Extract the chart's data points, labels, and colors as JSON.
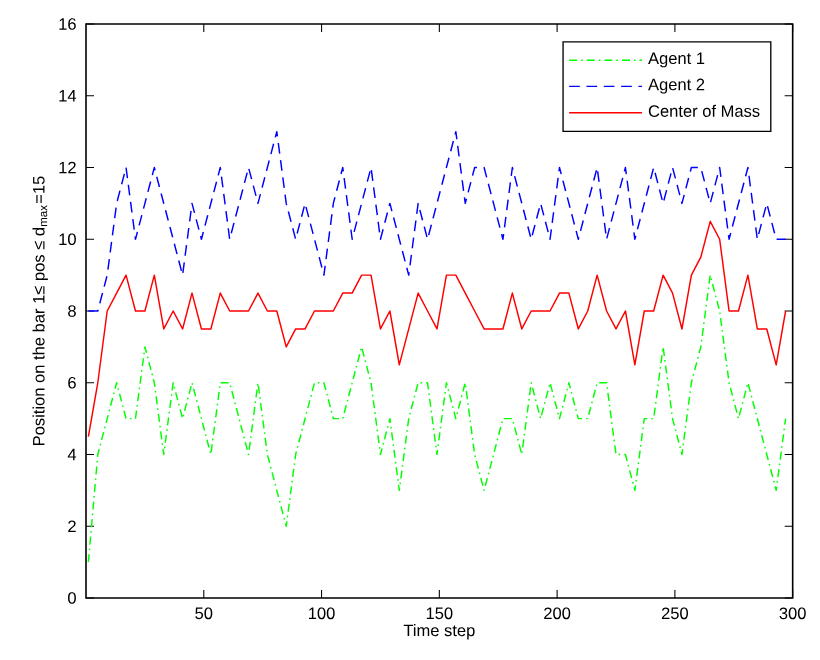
{
  "chart_data": {
    "type": "line",
    "xlabel": "Time step",
    "ylabel": "Position on the bar 1≤ pos ≤ d$_{max}$=15",
    "x": [
      1,
      5,
      9,
      13,
      17,
      21,
      25,
      29,
      33,
      37,
      41,
      45,
      49,
      53,
      57,
      61,
      65,
      69,
      73,
      77,
      81,
      85,
      89,
      93,
      97,
      101,
      105,
      109,
      113,
      117,
      121,
      125,
      129,
      133,
      137,
      141,
      145,
      149,
      153,
      157,
      161,
      165,
      169,
      173,
      177,
      181,
      185,
      189,
      193,
      197,
      201,
      205,
      209,
      213,
      217,
      221,
      225,
      229,
      233,
      237,
      241,
      245,
      249,
      253,
      257,
      261,
      265,
      269,
      273,
      277,
      281,
      285,
      289,
      293,
      297
    ],
    "series": [
      {
        "name": "Agent 1",
        "color": "#00ff00",
        "line_style": "dashdot",
        "values": [
          1,
          4,
          5,
          6,
          5,
          5,
          7,
          6,
          4,
          6,
          5,
          6,
          5,
          4,
          6,
          6,
          5,
          4,
          6,
          4,
          3,
          2,
          4,
          5,
          6,
          6,
          5,
          5,
          6,
          7,
          6,
          4,
          5,
          3,
          5,
          6,
          6,
          4,
          6,
          5,
          6,
          4,
          3,
          4,
          5,
          5,
          4,
          6,
          5,
          6,
          5,
          6,
          5,
          5,
          6,
          6,
          4,
          4,
          3,
          5,
          5,
          7,
          5,
          4,
          6,
          7,
          9,
          8,
          6,
          5,
          6,
          5,
          4,
          3,
          5
        ]
      },
      {
        "name": "Agent 2",
        "color": "#0000ff",
        "line_style": "dashed",
        "values": [
          8,
          8,
          9,
          11,
          12,
          10,
          11,
          12,
          11,
          10,
          9,
          11,
          10,
          11,
          12,
          10,
          11,
          12,
          11,
          12,
          13,
          11,
          10,
          11,
          10,
          9,
          11,
          12,
          10,
          11,
          12,
          10,
          11,
          10,
          9,
          11,
          10,
          11,
          12,
          13,
          11,
          12,
          12,
          11,
          10,
          12,
          11,
          10,
          11,
          10,
          12,
          11,
          10,
          11,
          12,
          10,
          11,
          12,
          10,
          11,
          12,
          11,
          12,
          11,
          12,
          12,
          11,
          12,
          10,
          11,
          12,
          10,
          11,
          10,
          10
        ]
      },
      {
        "name": "Center of Mass",
        "color": "#ff0000",
        "line_style": "solid",
        "values": [
          4.5,
          6,
          8,
          8.5,
          9,
          8,
          8,
          9,
          7.5,
          8,
          7.5,
          8.5,
          7.5,
          7.5,
          8.5,
          8,
          8,
          8,
          8.5,
          8,
          8,
          7,
          7.5,
          7.5,
          8,
          8,
          8,
          8.5,
          8.5,
          9,
          9,
          7.5,
          8,
          6.5,
          7.5,
          8.5,
          8,
          7.5,
          9,
          9,
          8.5,
          8,
          7.5,
          7.5,
          7.5,
          8.5,
          7.5,
          8,
          8,
          8,
          8.5,
          8.5,
          7.5,
          8,
          9,
          8,
          7.5,
          8,
          6.5,
          8,
          8,
          9,
          8.5,
          7.5,
          9,
          9.5,
          10.5,
          10,
          8,
          8,
          9,
          7.5,
          7.5,
          6.5,
          8
        ]
      }
    ],
    "xlim": [
      0,
      300
    ],
    "ylim": [
      0,
      16
    ],
    "xticks": [
      50,
      100,
      150,
      200,
      250,
      300
    ],
    "yticks": [
      0,
      2,
      4,
      6,
      8,
      10,
      12,
      14,
      16
    ],
    "legend": "top right",
    "grid": false
  }
}
